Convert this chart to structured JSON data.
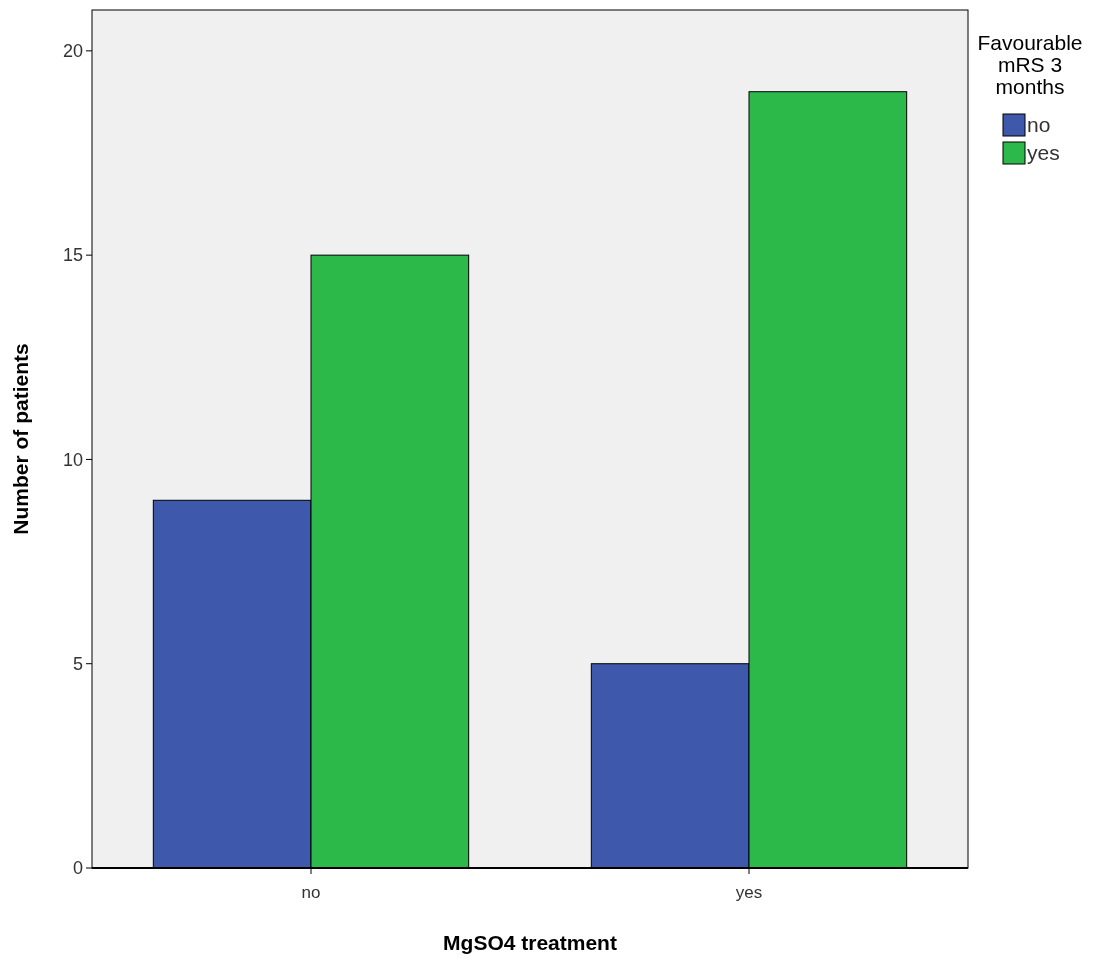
{
  "chart_data": {
    "type": "bar",
    "xlabel": "MgSO4 treatment",
    "ylabel": "Number of patients",
    "legend_title": "Favourable mRS 3 months",
    "categories": [
      "no",
      "yes"
    ],
    "series": [
      {
        "name": "no",
        "color": "#3e58ac",
        "values": [
          9,
          5
        ]
      },
      {
        "name": "yes",
        "color": "#2db84a",
        "values": [
          15,
          19
        ]
      }
    ],
    "ylim": [
      0,
      21
    ],
    "yticks": [
      0,
      5,
      10,
      15,
      20
    ],
    "grid": false,
    "legend": "right"
  }
}
